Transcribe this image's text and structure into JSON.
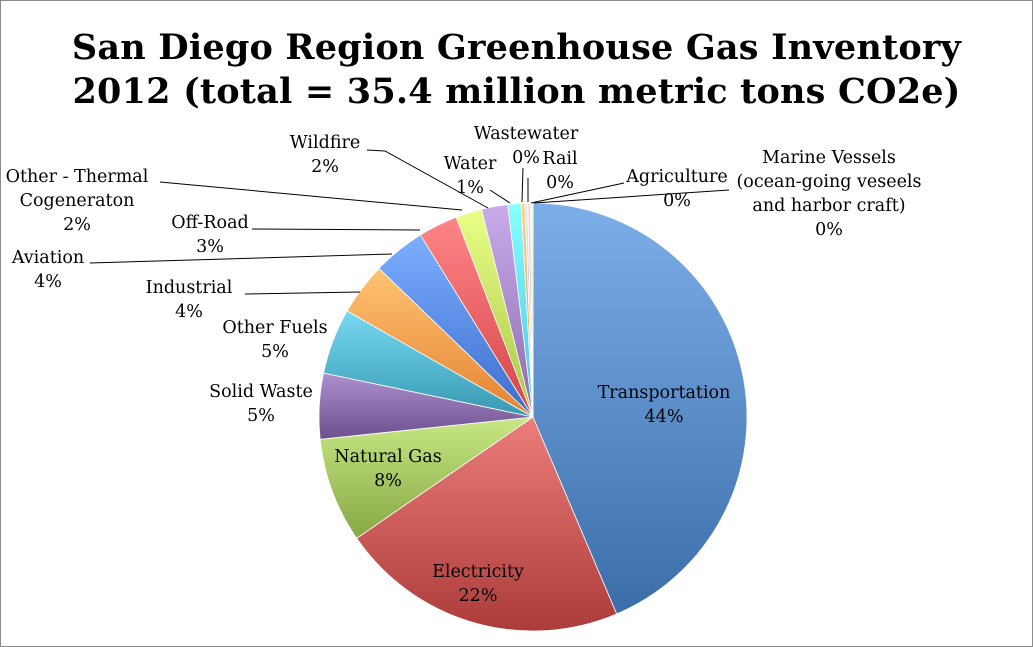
{
  "chart_data": {
    "type": "pie",
    "title_line1": "San Diego Region Greenhouse Gas Inventory",
    "title_line2": "2012 (total = 35.4 million metric tons CO2e)",
    "slices": [
      {
        "name": "Transportation",
        "value": 44,
        "label": "44%",
        "color": "#4f81bd"
      },
      {
        "name": "Electricity",
        "value": 22,
        "label": "22%",
        "color": "#c0504d"
      },
      {
        "name": "Natural Gas",
        "value": 8,
        "label": "8%",
        "color": "#9bbb59"
      },
      {
        "name": "Solid Waste",
        "value": 5,
        "label": "5%",
        "color": "#8064a2"
      },
      {
        "name": "Other Fuels",
        "value": 5,
        "label": "5%",
        "color": "#4bacc6"
      },
      {
        "name": "Industrial",
        "value": 4,
        "label": "4%",
        "color": "#f79646"
      },
      {
        "name": "Aviation",
        "value": 4,
        "label": "4%",
        "color": "#4f81e0"
      },
      {
        "name": "Off-Road",
        "value": 3,
        "label": "3%",
        "color": "#e8585a"
      },
      {
        "name": "Other - Thermal Cogeneraton",
        "value": 2,
        "label": "2%",
        "color": "#bcd95a"
      },
      {
        "name": "Wildfire",
        "value": 2,
        "label": "2%",
        "color": "#9d7fc0"
      },
      {
        "name": "Water",
        "value": 1,
        "label": "1%",
        "color": "#5ad8f0"
      },
      {
        "name": "Wastewater",
        "value": 0.3,
        "label": "0%",
        "color": "#f7a55a"
      },
      {
        "name": "Rail",
        "value": 0.2,
        "label": "0%",
        "color": "#a9c0e8"
      },
      {
        "name": "Agriculture",
        "value": 0.2,
        "label": "0%",
        "color": "#e8a9a8"
      },
      {
        "name": "Marine Vessels (ocean-going veseels and harbor craft)",
        "value": 0.2,
        "label": "0%",
        "color": "#cfe0a8"
      }
    ]
  }
}
